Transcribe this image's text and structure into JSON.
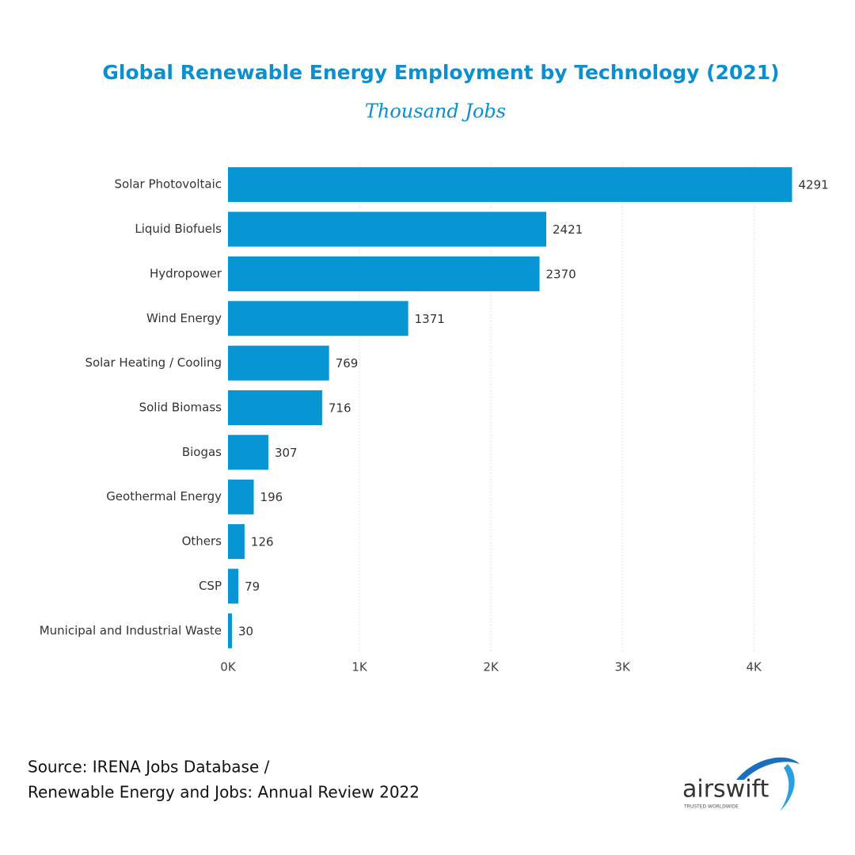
{
  "chart_data": {
    "type": "hbar",
    "title": "Global Renewable Energy Employment by Technology (2021)",
    "subtitle": "Thousand Jobs",
    "categories": [
      "Solar Photovoltaic",
      "Liquid Biofuels",
      "Hydropower",
      "Wind Energy",
      "Solar Heating / Cooling",
      "Solid Biomass",
      "Biogas",
      "Geothermal Energy",
      "Others",
      "CSP",
      "Municipal and Industrial Waste"
    ],
    "values": [
      4291,
      2421,
      2370,
      1371,
      769,
      716,
      307,
      196,
      126,
      79,
      30
    ],
    "color": "#0795d3",
    "xlim": [
      0,
      4300
    ],
    "xticks": [
      {
        "value": 0,
        "label": "0K"
      },
      {
        "value": 1000,
        "label": "1K"
      },
      {
        "value": 2000,
        "label": "2K"
      },
      {
        "value": 3000,
        "label": "3K"
      },
      {
        "value": 4000,
        "label": "4K"
      }
    ],
    "grid": true
  },
  "footer": {
    "source": [
      "Source:  IRENA Jobs Database /",
      "Renewable Energy and Jobs: Annual Review 2022"
    ],
    "logo": {
      "name": "airswift",
      "tagline": "TRUSTED WORLDWIDE"
    }
  }
}
